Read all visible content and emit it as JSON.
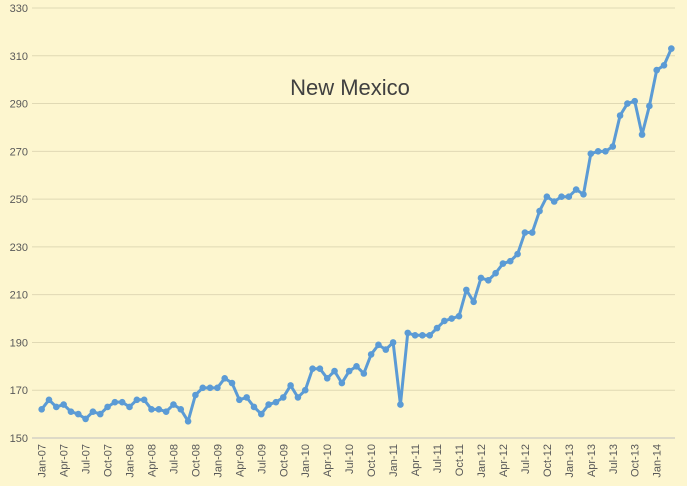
{
  "chart_data": {
    "type": "line",
    "title": "New Mexico",
    "categories": [
      "Jan-07",
      null,
      null,
      "Apr-07",
      null,
      null,
      "Jul-07",
      null,
      null,
      "Oct-07",
      null,
      null,
      "Jan-08",
      null,
      null,
      "Apr-08",
      null,
      null,
      "Jul-08",
      null,
      null,
      "Oct-08",
      null,
      null,
      "Jan-09",
      null,
      null,
      "Apr-09",
      null,
      null,
      "Jul-09",
      null,
      null,
      "Oct-09",
      null,
      null,
      "Jan-10",
      null,
      null,
      "Apr-10",
      null,
      null,
      "Jul-10",
      null,
      null,
      "Oct-10",
      null,
      null,
      "Jan-11",
      null,
      null,
      "Apr-11",
      null,
      null,
      "Jul-11",
      null,
      null,
      "Oct-11",
      null,
      null,
      "Jan-12",
      null,
      null,
      "Apr-12",
      null,
      null,
      "Jul-12",
      null,
      null,
      "Oct-12",
      null,
      null,
      "Jan-13",
      null,
      null,
      "Apr-13",
      null,
      null,
      "Jul-13",
      null,
      null,
      "Oct-13",
      null,
      null,
      "Jan-14",
      null,
      null
    ],
    "series": [
      {
        "name": "New Mexico",
        "color": "#5b9bd5",
        "values": [
          162,
          166,
          163,
          164,
          161,
          160,
          158,
          161,
          160,
          163,
          165,
          165,
          163,
          166,
          166,
          162,
          162,
          161,
          164,
          162,
          157,
          168,
          171,
          171,
          171,
          175,
          173,
          166,
          167,
          163,
          160,
          164,
          165,
          167,
          172,
          167,
          170,
          179,
          179,
          175,
          178,
          173,
          178,
          180,
          177,
          185,
          189,
          187,
          190,
          164,
          194,
          193,
          193,
          193,
          196,
          199,
          200,
          201,
          212,
          207,
          217,
          216,
          219,
          223,
          224,
          227,
          236,
          236,
          245,
          251,
          249,
          251,
          251,
          254,
          252,
          269,
          270,
          270,
          272,
          285,
          290,
          291,
          277,
          289,
          304,
          306,
          313
        ]
      }
    ],
    "ylim": [
      150,
      330
    ],
    "yticks": [
      150,
      170,
      190,
      210,
      230,
      250,
      270,
      290,
      310,
      330
    ],
    "grid": true
  }
}
